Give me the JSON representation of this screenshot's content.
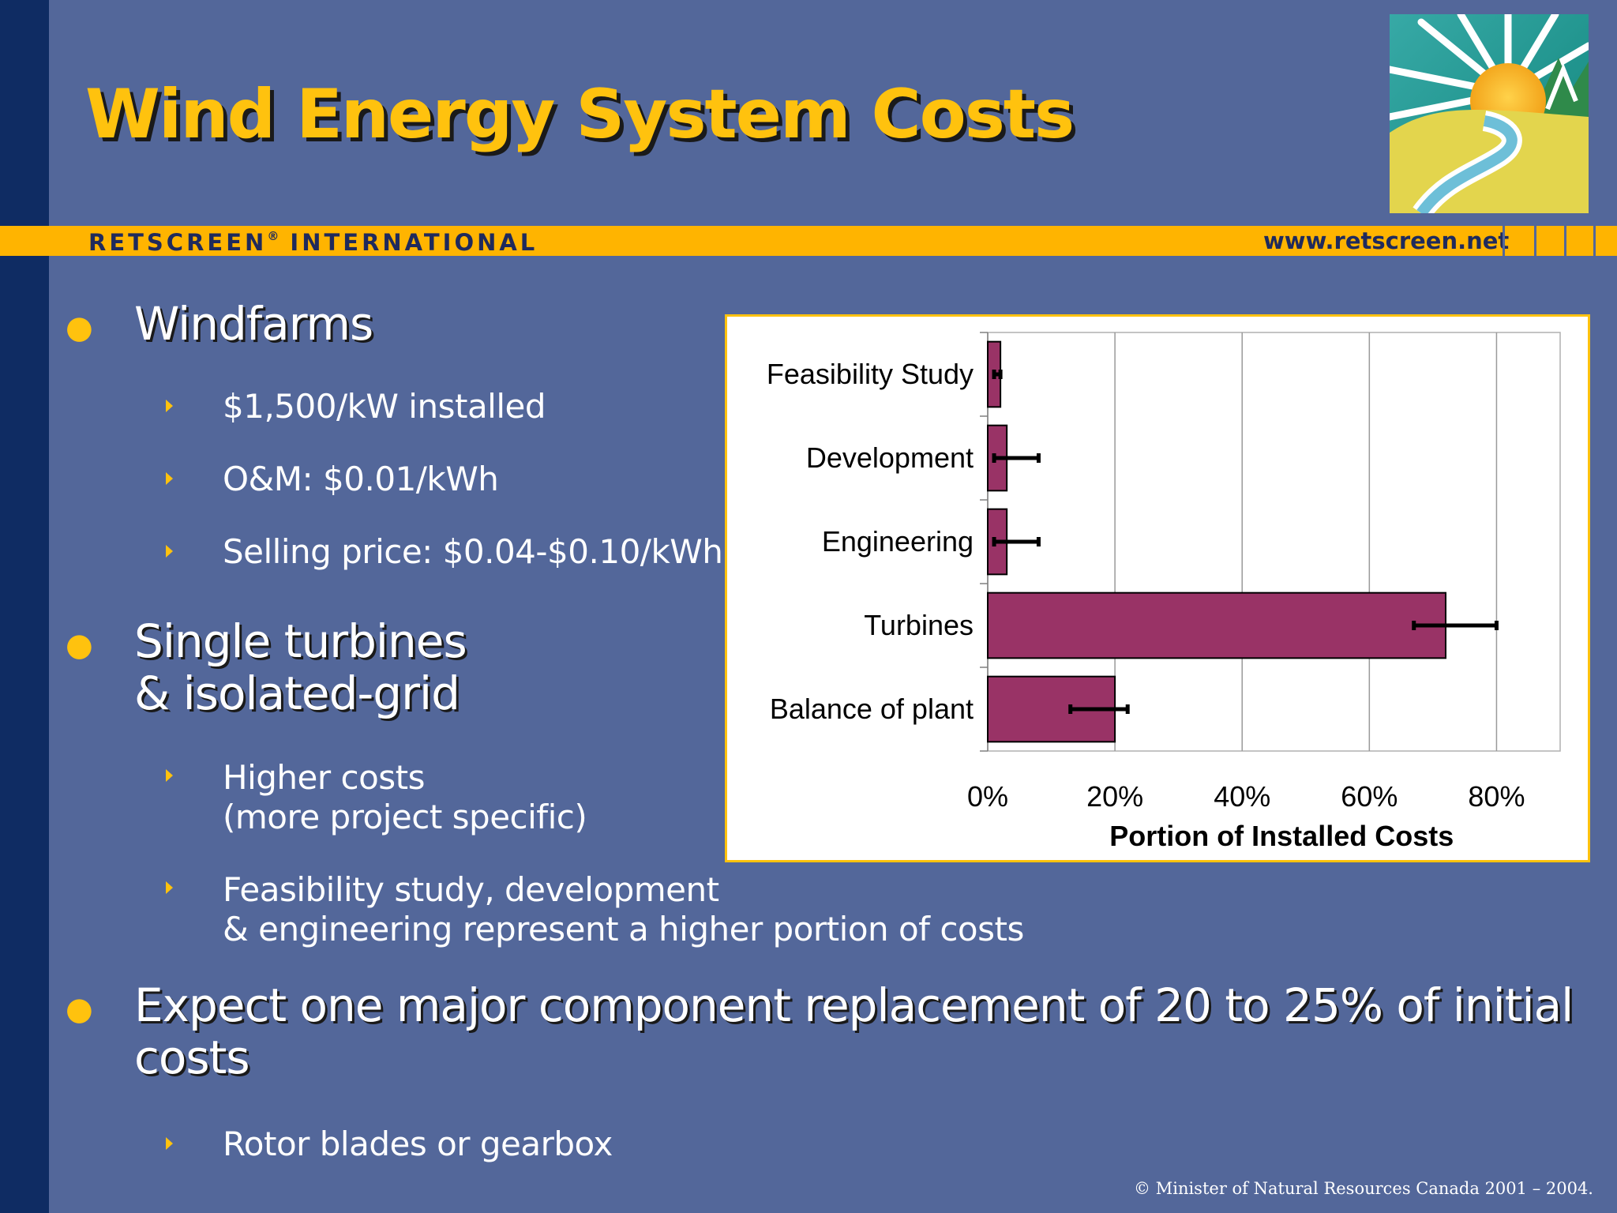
{
  "slide": {
    "title": "Wind Energy System Costs",
    "brand_name": "RETSCREEN",
    "brand_registered": "®",
    "brand_suffix": "INTERNATIONAL",
    "url": "www.retscreen.net",
    "footer": "© Minister of Natural Resources Canada 2001 – 2004."
  },
  "bullets": [
    {
      "lines": [
        "Windfarms"
      ],
      "sub": [
        {
          "lines": [
            "$1,500/kW installed"
          ]
        },
        {
          "lines": [
            "O&M: $0.01/kWh"
          ]
        },
        {
          "lines": [
            "Selling price: $0.04-$0.10/kWh"
          ]
        }
      ]
    },
    {
      "lines": [
        "Single turbines",
        "& isolated-grid"
      ],
      "sub": [
        {
          "lines": [
            "Higher costs",
            "(more project specific)"
          ]
        },
        {
          "lines": [
            "Feasibility study, development",
            "& engineering represent a higher portion of costs"
          ]
        }
      ]
    },
    {
      "lines": [
        "Expect one major component replacement of 20 to 25% of initial",
        "costs"
      ],
      "sub": [
        {
          "lines": [
            "Rotor blades or gearbox"
          ]
        }
      ]
    }
  ],
  "chart_data": {
    "type": "bar",
    "orientation": "horizontal",
    "categories": [
      "Feasibility Study",
      "Development",
      "Engineering",
      "Turbines",
      "Balance of plant"
    ],
    "values": [
      2,
      3,
      3,
      72,
      20
    ],
    "error_ranges": [
      [
        1,
        2
      ],
      [
        1,
        8
      ],
      [
        1,
        8
      ],
      [
        67,
        80
      ],
      [
        13,
        22
      ]
    ],
    "xlabel": "Portion of Installed Costs",
    "ylabel": "",
    "xlim": [
      0,
      90
    ],
    "x_ticks": [
      "0%",
      "20%",
      "40%",
      "60%",
      "80%"
    ],
    "x_tick_values": [
      0,
      20,
      40,
      60,
      80
    ],
    "grid": "vertical",
    "bar_color": "#993366",
    "error_bar_color": "#000000"
  },
  "colors": {
    "background": "#53679a",
    "accent": "#ffc20e",
    "left_bar": "#0f2c63",
    "text": "#ffffff"
  },
  "icons": {
    "logo": "sun-mountain-river-logo",
    "bullet": "bullet-dot",
    "sub_bullet": "triangle-arrow"
  }
}
